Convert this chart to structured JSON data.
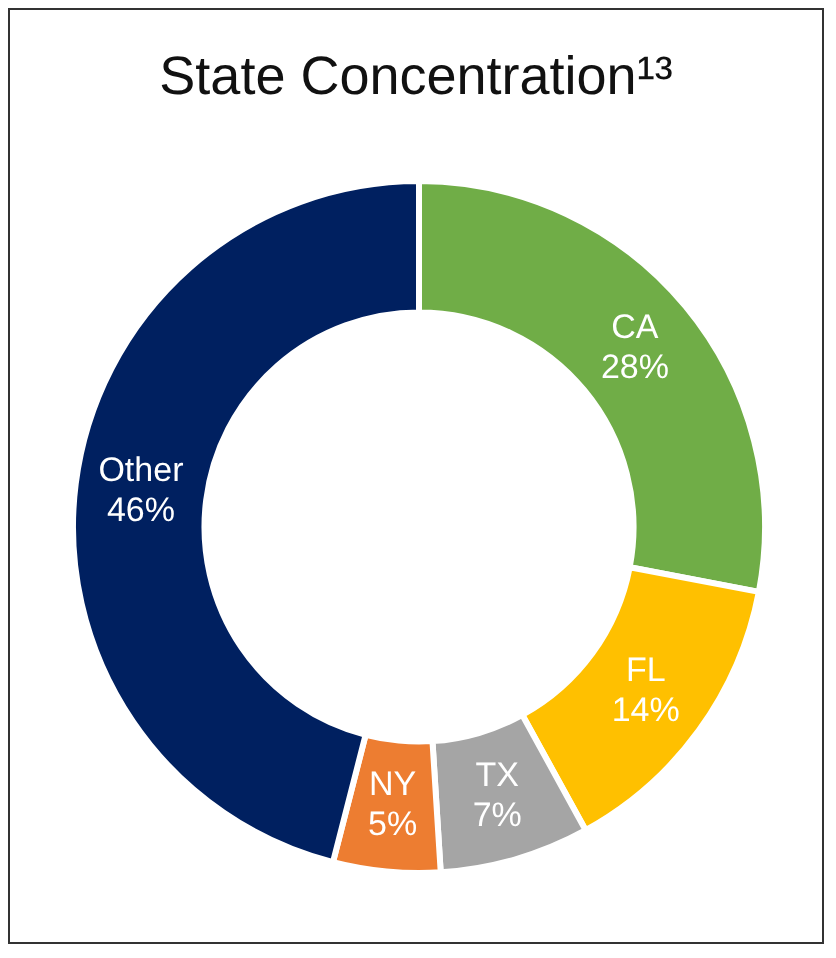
{
  "chart_data": {
    "type": "donut",
    "title": "State Concentration¹³",
    "categories": [
      "CA",
      "FL",
      "TX",
      "NY",
      "Other"
    ],
    "values": [
      28,
      14,
      7,
      5,
      46
    ],
    "value_labels": [
      "28%",
      "14%",
      "7%",
      "5%",
      "46%"
    ],
    "colors": [
      "#70ad47",
      "#ffc000",
      "#a5a5a5",
      "#ed7d31",
      "#002060"
    ],
    "legend": false
  }
}
